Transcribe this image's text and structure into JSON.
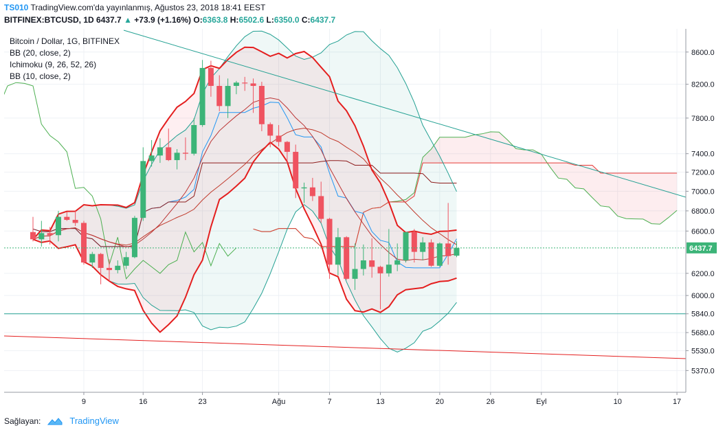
{
  "header": {
    "brand": "TS010",
    "published": "TradingView.com'da yayınlanmış, Ağustos 23, 2018 18:41 EEST",
    "symbol": "BITFINEX:BTCUSD, 1D",
    "last": "6437.7",
    "change": "+73.9 (+1.16%)",
    "o_label": "O:",
    "o": "6363.8",
    "h_label": "H:",
    "h": "6502.6",
    "l_label": "L:",
    "l": "6350.0",
    "c_label": "C:",
    "c": "6437.7"
  },
  "legend": {
    "title": "Bitcoin / Dollar, 1G, BITFINEX",
    "ind1": "BB (20, close, 2)",
    "ind2": "Ichimoku (9, 26, 52, 26)",
    "ind3": "BB (10, close, 2)"
  },
  "footer": {
    "label": "Sağlayan:",
    "brand": "TradingView"
  },
  "colors": {
    "up": "#3cb478",
    "down": "#ef5360",
    "bb20": "#e41e1e",
    "trend": "#22a092",
    "accent": "#2196f3"
  },
  "chart_data": {
    "type": "candlestick",
    "y_axis": {
      "ticks": [
        8600,
        8200,
        7800,
        7400,
        7200,
        7000,
        6800,
        6600,
        6437.7,
        6200,
        6000,
        5840,
        5680,
        5530,
        5370
      ],
      "scale": "log",
      "last_price_label": "6437.7"
    },
    "x_axis": {
      "ticks": [
        {
          "label": "9",
          "day": 9
        },
        {
          "label": "16",
          "day": 16
        },
        {
          "label": "23",
          "day": 23
        },
        {
          "label": "Ağu",
          "day": 32
        },
        {
          "label": "7",
          "day": 38
        },
        {
          "label": "13",
          "day": 44
        },
        {
          "label": "20",
          "day": 51
        },
        {
          "label": "26",
          "day": 57
        },
        {
          "label": "Eyl",
          "day": 63
        },
        {
          "label": "10",
          "day": 72
        },
        {
          "label": "17",
          "day": 79
        }
      ]
    },
    "candles": [
      {
        "d": "2018-07-04",
        "o": 6590,
        "h": 6740,
        "l": 6500,
        "c": 6520
      },
      {
        "d": "2018-07-05",
        "o": 6520,
        "h": 6700,
        "l": 6450,
        "c": 6580
      },
      {
        "d": "2018-07-06",
        "o": 6580,
        "h": 6640,
        "l": 6470,
        "c": 6560
      },
      {
        "d": "2018-07-07",
        "o": 6560,
        "h": 6800,
        "l": 6500,
        "c": 6740
      },
      {
        "d": "2018-07-08",
        "o": 6740,
        "h": 6790,
        "l": 6700,
        "c": 6710
      },
      {
        "d": "2018-07-09",
        "o": 6710,
        "h": 6800,
        "l": 6650,
        "c": 6680
      },
      {
        "d": "2018-07-10",
        "o": 6680,
        "h": 6700,
        "l": 6280,
        "c": 6300
      },
      {
        "d": "2018-07-11",
        "o": 6300,
        "h": 6400,
        "l": 6250,
        "c": 6380
      },
      {
        "d": "2018-07-12",
        "o": 6380,
        "h": 6390,
        "l": 6100,
        "c": 6250
      },
      {
        "d": "2018-07-13",
        "o": 6250,
        "h": 6330,
        "l": 6130,
        "c": 6230
      },
      {
        "d": "2018-07-14",
        "o": 6230,
        "h": 6320,
        "l": 6200,
        "c": 6270
      },
      {
        "d": "2018-07-15",
        "o": 6270,
        "h": 6400,
        "l": 6240,
        "c": 6350
      },
      {
        "d": "2018-07-16",
        "o": 6350,
        "h": 6750,
        "l": 6340,
        "c": 6730
      },
      {
        "d": "2018-07-17",
        "o": 6730,
        "h": 7470,
        "l": 6700,
        "c": 7320
      },
      {
        "d": "2018-07-18",
        "o": 7320,
        "h": 7550,
        "l": 7260,
        "c": 7380
      },
      {
        "d": "2018-07-19",
        "o": 7380,
        "h": 7570,
        "l": 7300,
        "c": 7470
      },
      {
        "d": "2018-07-20",
        "o": 7470,
        "h": 7680,
        "l": 7320,
        "c": 7330
      },
      {
        "d": "2018-07-21",
        "o": 7330,
        "h": 7450,
        "l": 7230,
        "c": 7410
      },
      {
        "d": "2018-07-22",
        "o": 7410,
        "h": 7580,
        "l": 7330,
        "c": 7400
      },
      {
        "d": "2018-07-23",
        "o": 7400,
        "h": 7800,
        "l": 7380,
        "c": 7720
      },
      {
        "d": "2018-07-24",
        "o": 7720,
        "h": 8500,
        "l": 7700,
        "c": 8400
      },
      {
        "d": "2018-07-25",
        "o": 8400,
        "h": 8490,
        "l": 8050,
        "c": 8180
      },
      {
        "d": "2018-07-26",
        "o": 8180,
        "h": 8310,
        "l": 7880,
        "c": 7940
      },
      {
        "d": "2018-07-27",
        "o": 7940,
        "h": 8270,
        "l": 7800,
        "c": 8180
      },
      {
        "d": "2018-07-28",
        "o": 8180,
        "h": 8240,
        "l": 8080,
        "c": 8220
      },
      {
        "d": "2018-07-29",
        "o": 8220,
        "h": 8290,
        "l": 8120,
        "c": 8210
      },
      {
        "d": "2018-07-30",
        "o": 8210,
        "h": 8270,
        "l": 7860,
        "c": 8180
      },
      {
        "d": "2018-07-31",
        "o": 8180,
        "h": 8230,
        "l": 7650,
        "c": 7730
      },
      {
        "d": "2018-08-01",
        "o": 7730,
        "h": 7750,
        "l": 7470,
        "c": 7600
      },
      {
        "d": "2018-08-02",
        "o": 7600,
        "h": 7720,
        "l": 7480,
        "c": 7530
      },
      {
        "d": "2018-08-03",
        "o": 7530,
        "h": 7540,
        "l": 7300,
        "c": 7420
      },
      {
        "d": "2018-08-04",
        "o": 7420,
        "h": 7500,
        "l": 6930,
        "c": 7030
      },
      {
        "d": "2018-08-05",
        "o": 7030,
        "h": 7090,
        "l": 6880,
        "c": 7040
      },
      {
        "d": "2018-08-06",
        "o": 7040,
        "h": 7140,
        "l": 6900,
        "c": 6950
      },
      {
        "d": "2018-08-07",
        "o": 6950,
        "h": 7100,
        "l": 6680,
        "c": 6720
      },
      {
        "d": "2018-08-08",
        "o": 6720,
        "h": 6730,
        "l": 6150,
        "c": 6280
      },
      {
        "d": "2018-08-09",
        "o": 6280,
        "h": 6630,
        "l": 6180,
        "c": 6540
      },
      {
        "d": "2018-08-10",
        "o": 6540,
        "h": 6550,
        "l": 6140,
        "c": 6150
      },
      {
        "d": "2018-08-11",
        "o": 6150,
        "h": 6480,
        "l": 6050,
        "c": 6240
      },
      {
        "d": "2018-08-12",
        "o": 6240,
        "h": 6470,
        "l": 6180,
        "c": 6320
      },
      {
        "d": "2018-08-13",
        "o": 6320,
        "h": 6530,
        "l": 6160,
        "c": 6260
      },
      {
        "d": "2018-08-14",
        "o": 6260,
        "h": 6270,
        "l": 5880,
        "c": 6200
      },
      {
        "d": "2018-08-15",
        "o": 6200,
        "h": 6620,
        "l": 6170,
        "c": 6280
      },
      {
        "d": "2018-08-16",
        "o": 6280,
        "h": 6480,
        "l": 6220,
        "c": 6320
      },
      {
        "d": "2018-08-17",
        "o": 6320,
        "h": 6580,
        "l": 6300,
        "c": 6590
      },
      {
        "d": "2018-08-18",
        "o": 6590,
        "h": 6620,
        "l": 6300,
        "c": 6400
      },
      {
        "d": "2018-08-19",
        "o": 6400,
        "h": 6540,
        "l": 6320,
        "c": 6490
      },
      {
        "d": "2018-08-20",
        "o": 6490,
        "h": 6520,
        "l": 6260,
        "c": 6270
      },
      {
        "d": "2018-08-21",
        "o": 6270,
        "h": 6490,
        "l": 6260,
        "c": 6480
      },
      {
        "d": "2018-08-22",
        "o": 6480,
        "h": 6880,
        "l": 6280,
        "c": 6360
      },
      {
        "d": "2018-08-23",
        "o": 6363.8,
        "h": 6502.6,
        "l": 6350.0,
        "c": 6437.7
      }
    ]
  }
}
